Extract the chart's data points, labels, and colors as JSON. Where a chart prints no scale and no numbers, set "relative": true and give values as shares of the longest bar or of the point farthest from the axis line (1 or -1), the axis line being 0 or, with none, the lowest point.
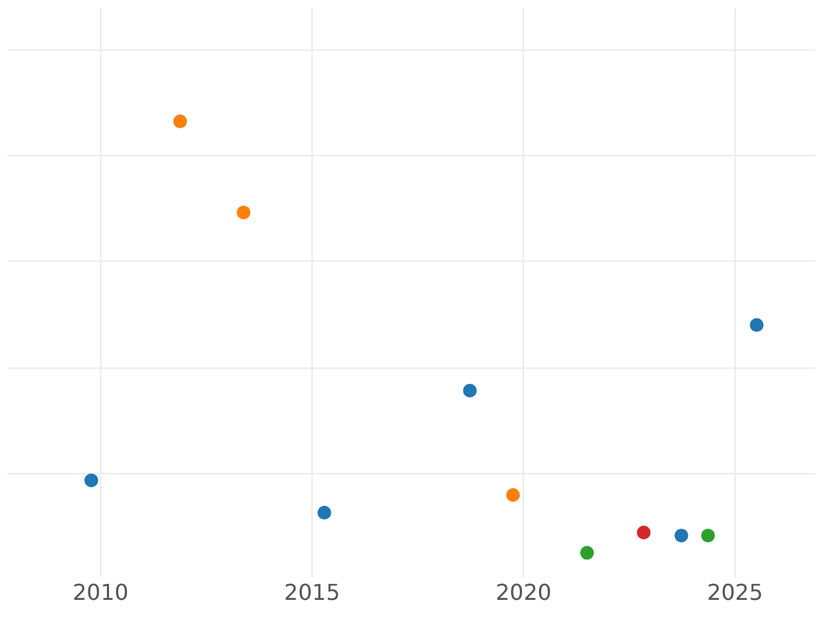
{
  "chart_data": {
    "type": "scatter",
    "relative": true,
    "xlim": [
      2007.8,
      2026.9
    ],
    "xticks": [
      2010,
      2015,
      2020,
      2025
    ],
    "grid": true,
    "legend": false,
    "marker": "circle",
    "series": [
      {
        "color": "#1f77b4",
        "x": [
          2009.78,
          2015.29,
          2018.73,
          2023.73,
          2025.51
        ],
        "values": [
          0.168,
          0.093,
          0.376,
          0.04,
          0.528
        ]
      },
      {
        "color": "#ff7f0e",
        "x": [
          2011.88,
          2013.38,
          2019.75
        ],
        "values": [
          1,
          0.789,
          0.134
        ]
      },
      {
        "color": "#2ca02c",
        "x": [
          2021.5,
          2024.36
        ],
        "values": [
          0,
          0.04
        ]
      },
      {
        "color": "#d62728",
        "x": [
          2022.84
        ],
        "values": [
          0.047
        ]
      }
    ]
  }
}
